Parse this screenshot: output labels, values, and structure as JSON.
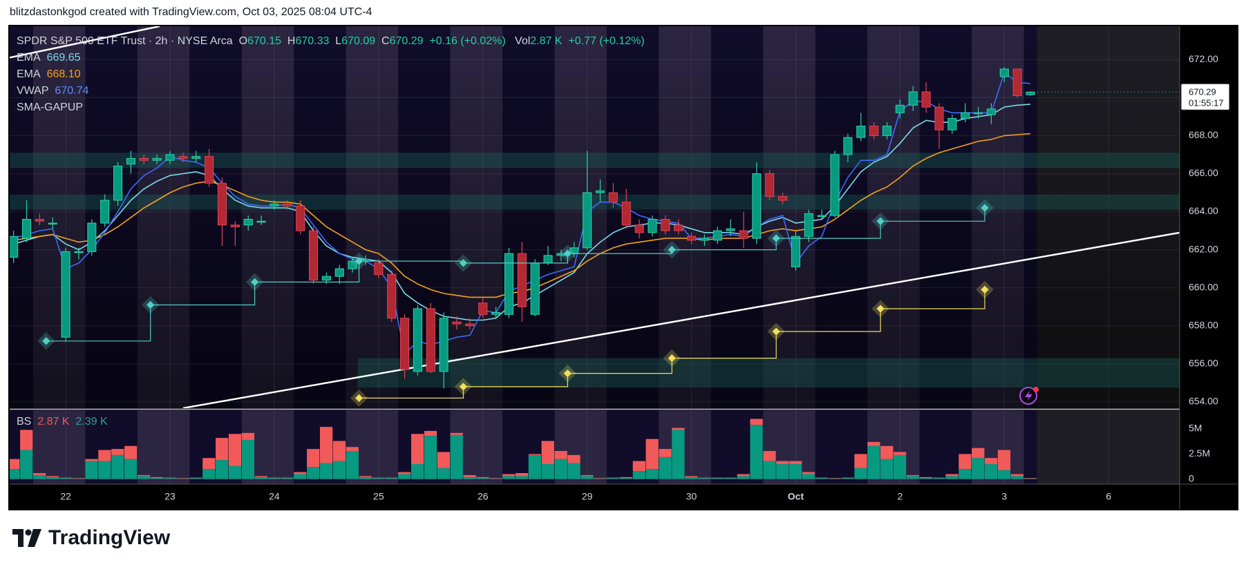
{
  "header": "blitzdastonkgod created with TradingView.com, Oct 03, 2025 08:04 UTC-4",
  "brand": "TradingView",
  "chart_data": {
    "type": "candlestick",
    "title": "SPDR S&P 500 ETF Trust · 2h · NYSE Arca",
    "ohlc_labels": {
      "o": "O",
      "o_value": "670.15",
      "h": "H",
      "h_value": "670.33",
      "l": "L",
      "l_value": "670.09",
      "c": "C",
      "c_value": "670.29",
      "change": "+0.16 (+0.02%)",
      "vol": "Vol",
      "vol_value": "2.87 K",
      "vol_change": "+0.77 (+0.12%)"
    },
    "last_price_label": "670.29",
    "countdown": "01:55:17",
    "xlim": [
      -0.3,
      89.45
    ],
    "xticks": [
      {
        "value": 4,
        "label": "22"
      },
      {
        "value": 12,
        "label": "23"
      },
      {
        "value": 20,
        "label": "24"
      },
      {
        "value": 28,
        "label": "25"
      },
      {
        "value": 36,
        "label": "26"
      },
      {
        "value": 44,
        "label": "29"
      },
      {
        "value": 52,
        "label": "30"
      },
      {
        "value": 60,
        "label": "Oct"
      },
      {
        "value": 68,
        "label": "2"
      },
      {
        "value": 76,
        "label": "3"
      },
      {
        "value": 84,
        "label": "6"
      }
    ],
    "ylim": [
      653.67,
      673.75
    ],
    "yticks": [
      {
        "value": 654,
        "label": "654.00"
      },
      {
        "value": 656,
        "label": "656.00"
      },
      {
        "value": 658,
        "label": "658.00"
      },
      {
        "value": 660,
        "label": "660.00"
      },
      {
        "value": 662,
        "label": "662.00"
      },
      {
        "value": 664,
        "label": "664.00"
      },
      {
        "value": 666,
        "label": "666.00"
      },
      {
        "value": 668,
        "label": "668.00"
      },
      {
        "value": 670,
        "label": "670.00"
      },
      {
        "value": 672,
        "label": "672.00"
      }
    ],
    "up_color": "#089981",
    "down_color": "#b22833",
    "open": [
      661.6,
      662.6,
      663.6,
      663.4,
      657.4,
      661.9,
      661.9,
      663.4,
      664.6,
      666.5,
      666.8,
      666.7,
      666.7,
      666.9,
      666.8,
      666.9,
      665.5,
      663.3,
      663.3,
      663.5,
      664.3,
      664.4,
      664.3,
      663.0,
      660.4,
      660.6,
      661.0,
      661.4,
      661.3,
      660.7,
      658.4,
      655.6,
      658.9,
      655.6,
      658.2,
      658.1,
      659.2,
      658.6,
      658.6,
      661.8,
      658.6,
      661.3,
      661.7,
      661.8,
      662.1,
      665.0,
      665.0,
      664.5,
      663.3,
      662.9,
      663.6,
      663.3,
      662.7,
      662.5,
      662.5,
      663.0,
      663.0,
      662.6,
      666.0,
      664.8,
      661.1,
      662.7,
      663.8,
      663.8,
      667.0,
      667.9,
      668.5,
      668.0,
      669.2,
      669.6,
      670.3,
      669.5,
      668.3,
      668.9,
      669.2,
      669.1,
      671.1,
      671.5,
      670.15
    ],
    "high": [
      663.0,
      664.6,
      663.9,
      663.7,
      662.1,
      662.1,
      663.6,
      664.9,
      666.6,
      667.2,
      667.0,
      667.0,
      667.2,
      667.1,
      667.2,
      667.3,
      665.8,
      663.5,
      663.8,
      663.8,
      664.6,
      664.6,
      664.6,
      663.2,
      660.8,
      661.2,
      661.6,
      661.7,
      661.5,
      660.9,
      658.6,
      659.1,
      659.2,
      658.7,
      658.5,
      658.4,
      659.5,
      659.0,
      662.1,
      662.4,
      661.5,
      662.2,
      662.0,
      662.4,
      667.2,
      665.7,
      665.5,
      665.2,
      663.6,
      663.8,
      663.8,
      663.6,
      662.9,
      662.8,
      663.2,
      663.6,
      664.0,
      666.6,
      666.2,
      665.0,
      663.0,
      664.1,
      664.1,
      667.2,
      668.1,
      669.2,
      668.7,
      668.7,
      669.9,
      670.6,
      670.8,
      669.7,
      669.1,
      669.7,
      669.5,
      669.7,
      671.6,
      671.5,
      670.33
    ],
    "low": [
      661.3,
      662.4,
      663.3,
      663.1,
      657.2,
      661.5,
      661.7,
      663.2,
      664.3,
      666.0,
      666.5,
      666.5,
      666.5,
      666.6,
      666.6,
      665.3,
      662.2,
      662.2,
      663.0,
      663.3,
      664.1,
      664.1,
      662.8,
      660.2,
      660.2,
      660.2,
      660.8,
      661.2,
      660.5,
      658.2,
      655.2,
      655.4,
      655.5,
      654.7,
      657.8,
      657.8,
      658.4,
      658.4,
      658.4,
      658.2,
      658.5,
      661.2,
      661.4,
      661.6,
      662.0,
      664.5,
      664.2,
      663.1,
      662.6,
      662.7,
      662.8,
      662.8,
      662.3,
      662.2,
      662.3,
      662.7,
      662.1,
      662.3,
      664.6,
      664.4,
      660.9,
      662.4,
      663.6,
      663.7,
      666.6,
      667.7,
      667.8,
      667.8,
      668.9,
      669.3,
      669.2,
      667.3,
      668.1,
      668.7,
      668.9,
      668.6,
      670.8,
      670.0,
      670.09
    ],
    "close": [
      662.7,
      663.6,
      663.5,
      663.4,
      661.9,
      661.9,
      663.4,
      664.6,
      666.4,
      666.8,
      666.7,
      666.8,
      667.0,
      666.8,
      666.9,
      665.5,
      663.3,
      663.2,
      663.6,
      663.5,
      664.4,
      664.3,
      663.0,
      660.4,
      660.6,
      661.0,
      661.4,
      661.5,
      660.7,
      658.4,
      655.7,
      658.9,
      655.6,
      658.4,
      658.1,
      658.0,
      658.6,
      658.7,
      661.8,
      659.0,
      661.3,
      661.7,
      661.8,
      662.1,
      665.0,
      665.1,
      664.5,
      663.3,
      662.9,
      663.6,
      663.0,
      663.0,
      662.5,
      662.6,
      663.0,
      663.1,
      662.6,
      666.0,
      664.8,
      664.6,
      662.7,
      663.9,
      663.8,
      667.0,
      667.9,
      668.5,
      668.0,
      668.5,
      669.6,
      670.3,
      669.5,
      668.3,
      668.9,
      669.2,
      669.2,
      669.4,
      671.5,
      670.1,
      670.29
    ],
    "series": [
      {
        "name": "EMA",
        "legend_value": "669.65",
        "color": "#7fd8e6",
        "values": [
          662.3,
          662.5,
          662.7,
          662.8,
          662.3,
          662.0,
          662.4,
          663.0,
          663.8,
          664.6,
          665.2,
          665.6,
          665.9,
          666.0,
          666.1,
          665.9,
          665.2,
          664.6,
          664.3,
          664.2,
          664.2,
          664.2,
          664.0,
          663.0,
          662.2,
          661.8,
          661.6,
          661.5,
          661.4,
          660.8,
          659.7,
          659.2,
          658.8,
          658.5,
          658.4,
          658.3,
          658.3,
          658.4,
          659.0,
          659.2,
          659.6,
          660.0,
          660.4,
          660.8,
          661.8,
          662.4,
          662.9,
          663.2,
          663.3,
          663.4,
          663.4,
          663.3,
          663.1,
          662.9,
          662.9,
          662.9,
          662.8,
          663.2,
          663.5,
          663.7,
          663.4,
          663.5,
          663.6,
          664.3,
          665.2,
          666.1,
          666.6,
          666.9,
          667.6,
          668.4,
          668.8,
          668.7,
          668.7,
          668.9,
          669.0,
          669.1,
          669.5,
          669.6,
          669.65
        ]
      },
      {
        "name": "EMA",
        "legend_value": "668.10",
        "color": "#f7a21b",
        "values": [
          662.5,
          662.6,
          662.7,
          662.8,
          662.6,
          662.4,
          662.5,
          662.8,
          663.2,
          663.7,
          664.2,
          664.6,
          665.0,
          665.3,
          665.5,
          665.6,
          665.4,
          665.1,
          664.8,
          664.6,
          664.5,
          664.5,
          664.4,
          663.8,
          663.2,
          662.8,
          662.4,
          662.0,
          661.8,
          661.3,
          660.6,
          660.2,
          659.9,
          659.7,
          659.6,
          659.5,
          659.5,
          659.5,
          659.7,
          659.8,
          660.0,
          660.3,
          660.6,
          660.9,
          661.4,
          661.8,
          662.1,
          662.3,
          662.4,
          662.5,
          662.6,
          662.6,
          662.6,
          662.5,
          662.6,
          662.6,
          662.6,
          662.8,
          663.0,
          663.1,
          663.0,
          663.1,
          663.2,
          663.6,
          664.1,
          664.6,
          665.0,
          665.3,
          665.8,
          666.4,
          666.8,
          667.1,
          667.3,
          667.5,
          667.7,
          667.8,
          668.0,
          668.05,
          668.1
        ]
      },
      {
        "name": "VWAP",
        "legend_value": "670.74",
        "color": "#3d6bff",
        "values": [
          662.6,
          662.8,
          663.0,
          663.1,
          661.0,
          661.3,
          662.0,
          662.9,
          664.0,
          665.2,
          665.9,
          666.3,
          666.9,
          666.7,
          666.6,
          666.3,
          665.5,
          664.8,
          664.4,
          664.3,
          664.3,
          664.4,
          664.2,
          663.3,
          662.4,
          661.8,
          661.5,
          661.4,
          661.0,
          660.0,
          656.5,
          657.2,
          657.0,
          657.2,
          657.4,
          657.5,
          658.8,
          658.7,
          659.8,
          660.1,
          660.4,
          660.7,
          660.9,
          661.1,
          664.0,
          664.5,
          664.5,
          664.2,
          663.8,
          663.6,
          663.5,
          663.4,
          662.6,
          662.6,
          662.7,
          662.8,
          662.7,
          663.2,
          663.6,
          663.8,
          661.3,
          662.2,
          662.7,
          664.5,
          665.8,
          666.7,
          666.7,
          667.0,
          669.3,
          669.8,
          669.8,
          669.4,
          669.2,
          669.2,
          669.2,
          669.2,
          671.3,
          670.8,
          670.74
        ]
      }
    ],
    "gap_indicator": {
      "name": "SMA-GAPUP",
      "levels": [
        {
          "color": "#4fd1c5",
          "x": [
            2.5,
            10.5,
            18.5,
            26.5,
            34.5,
            42.5,
            50.5,
            58.5,
            66.5,
            74.5
          ],
          "values": [
            657.2,
            659.1,
            660.3,
            661.4,
            661.3,
            661.8,
            662.0,
            662.6,
            663.5,
            664.2
          ]
        },
        {
          "color": "#f2e05a",
          "x": [
            26.5,
            34.5,
            42.5,
            50.5,
            58.5,
            66.5,
            74.5
          ],
          "values": [
            654.2,
            654.8,
            655.5,
            656.3,
            657.7,
            658.9,
            659.9
          ]
        }
      ]
    },
    "zones": [
      {
        "x_start": -0.3,
        "low": 666.3,
        "high": 667.1
      },
      {
        "x_start": -0.3,
        "low": 664.1,
        "high": 664.9
      },
      {
        "x_start": 26.4,
        "low": 654.75,
        "high": 656.3
      }
    ],
    "trendlines": [
      {
        "x": [
          13,
          89.45
        ],
        "values": [
          653.67,
          662.9
        ]
      },
      {
        "x": [
          -0.3,
          11.2
        ],
        "values": [
          672.1,
          673.75
        ]
      }
    ],
    "volume": {
      "name": "BS",
      "buy_label": "2.87 K",
      "sell_label": "2.39 K",
      "ylim": [
        -0.5,
        6.86
      ],
      "yticks": [
        {
          "value": 5,
          "label": "5M"
        },
        {
          "value": 2.5,
          "label": "2.5M"
        },
        0
      ],
      "buy_color": "#089981",
      "sell_color": "#f25a5a",
      "buy": [
        1.0,
        2.9,
        0.4,
        0.2,
        0.1,
        0.05,
        1.8,
        1.8,
        2.4,
        2.0,
        0.3,
        0.1,
        0.1,
        0.05,
        0.1,
        1.0,
        1.9,
        1.3,
        3.9,
        0.2,
        0.1,
        0.1,
        0.5,
        1.2,
        1.6,
        1.8,
        2.8,
        0.2,
        0.1,
        0.1,
        0.5,
        1.5,
        4.3,
        1.1,
        4.4,
        0.2,
        0.1,
        0.05,
        0.3,
        0.3,
        2.4,
        1.5,
        2.0,
        1.6,
        0.3,
        0.05,
        0.1,
        0.1,
        0.8,
        1.0,
        2.2,
        4.9,
        0.2,
        0.1,
        0.1,
        0.1,
        0.3,
        5.4,
        1.8,
        1.5,
        1.5,
        0.5,
        0.1,
        0.05,
        0.1,
        1.1,
        3.3,
        2.0,
        2.4,
        0.3,
        0.1,
        0.1,
        0.3,
        1.0,
        2.1,
        1.5,
        0.9,
        0.3,
        0.05
      ],
      "sell": [
        1.0,
        2.0,
        0.2,
        0.1,
        0.05,
        0.05,
        0.2,
        1.1,
        0.6,
        1.3,
        0.1,
        0.1,
        0.05,
        0.05,
        0.05,
        1.1,
        2.2,
        3.2,
        0.7,
        0.1,
        0.05,
        0.05,
        0.2,
        1.8,
        3.6,
        2.0,
        0.4,
        0.1,
        0.05,
        0.05,
        0.2,
        3.0,
        0.5,
        1.6,
        0.2,
        0.2,
        0.1,
        0.05,
        0.2,
        0.3,
        0.1,
        2.3,
        0.8,
        0.8,
        0.1,
        0.05,
        0.05,
        0.1,
        1.0,
        3.0,
        0.8,
        0.2,
        0.1,
        0.05,
        0.05,
        0.05,
        0.2,
        0.6,
        1.0,
        0.3,
        0.3,
        0.2,
        0.05,
        0.05,
        0.05,
        1.4,
        0.4,
        1.3,
        0.3,
        0.1,
        0.1,
        0.05,
        0.2,
        1.5,
        1.0,
        0.6,
        2.0,
        0.2,
        0.05
      ]
    }
  }
}
